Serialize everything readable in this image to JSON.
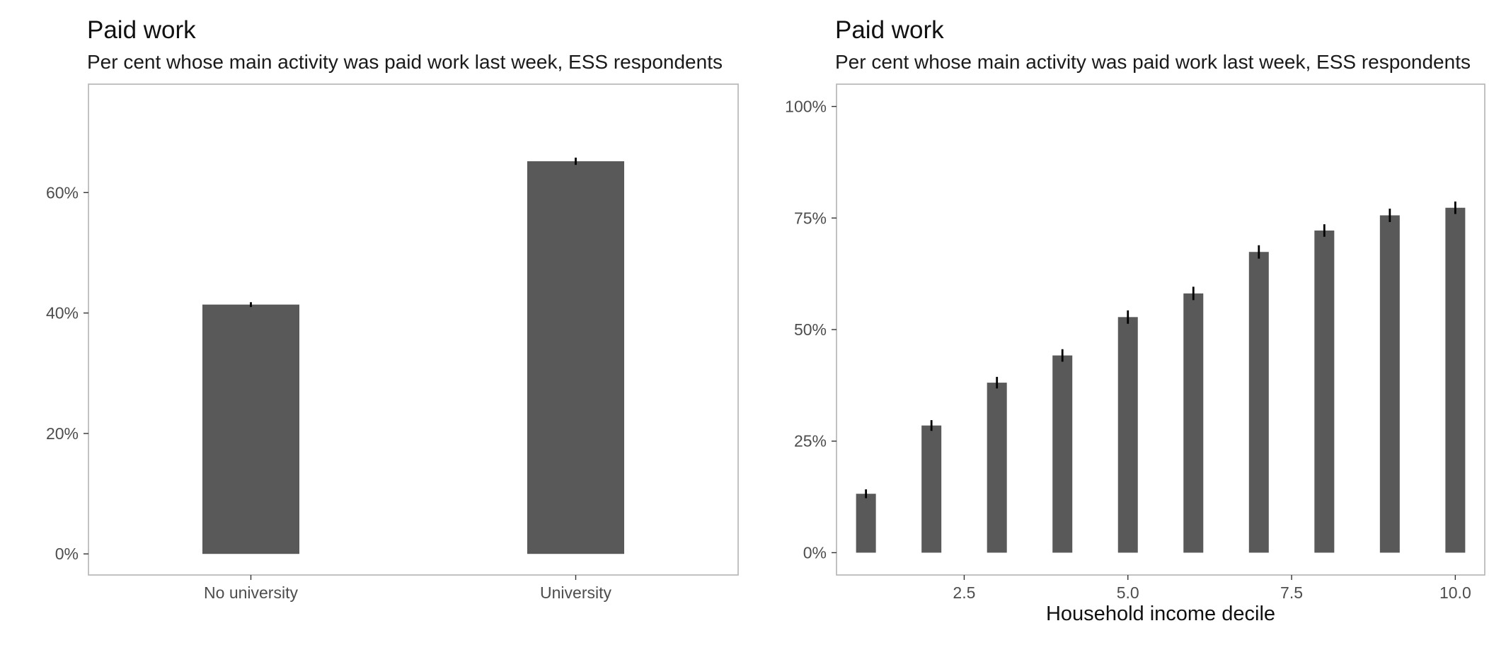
{
  "colors": {
    "bar": "#595959",
    "error_bar": "#000000",
    "panel_border": "#b3b3b3",
    "background": "#ffffff"
  },
  "chart_data": [
    {
      "type": "bar",
      "title": "Paid work",
      "subtitle": "Per cent whose main activity was paid work last week, ESS respondents",
      "xlabel": "",
      "ylabel": "",
      "categories": [
        "No university",
        "University"
      ],
      "values": [
        41.4,
        65.2
      ],
      "error_low": [
        41.0,
        64.6
      ],
      "error_high": [
        41.8,
        65.8
      ],
      "ylim": [
        -3.5,
        78
      ],
      "yticks": [
        0,
        20,
        40,
        60
      ],
      "ytick_labels": [
        "0%",
        "20%",
        "40%",
        "60%"
      ],
      "xticks": [
        "No university",
        "University"
      ],
      "grid": false
    },
    {
      "type": "bar",
      "title": "Paid work",
      "subtitle": "Per cent whose main activity was paid work last week, ESS respondents",
      "xlabel": "Household income decile",
      "ylabel": "",
      "x": [
        1,
        2,
        3,
        4,
        5,
        6,
        7,
        8,
        9,
        10
      ],
      "values": [
        13.2,
        28.5,
        38.1,
        44.2,
        52.8,
        58.1,
        67.4,
        72.2,
        75.6,
        77.3
      ],
      "error_low": [
        12.2,
        27.3,
        36.8,
        42.8,
        51.3,
        56.6,
        65.9,
        70.8,
        74.1,
        75.9
      ],
      "error_high": [
        14.2,
        29.7,
        39.4,
        45.6,
        54.3,
        59.6,
        68.9,
        73.6,
        77.1,
        78.7
      ],
      "xlim": [
        0.55,
        10.45
      ],
      "ylim": [
        -5,
        105
      ],
      "xticks": [
        2.5,
        5.0,
        7.5,
        10.0
      ],
      "xtick_labels": [
        "2.5",
        "5.0",
        "7.5",
        "10.0"
      ],
      "yticks": [
        0,
        25,
        50,
        75,
        100
      ],
      "ytick_labels": [
        "0%",
        "25%",
        "50%",
        "75%",
        "100%"
      ],
      "grid": false
    }
  ]
}
